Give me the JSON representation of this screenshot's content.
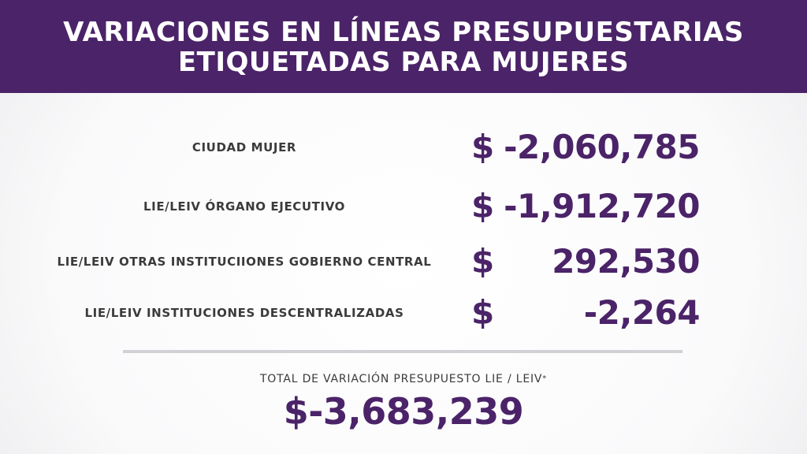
{
  "header": {
    "title_line1": "VARIACIONES EN LÍNEAS PRESUPUESTARIAS",
    "title_line2": "ETIQUETADAS PARA MUJERES"
  },
  "rows": [
    {
      "label": "CIUDAD MUJER",
      "currency": "$",
      "amount": "-2,060,785"
    },
    {
      "label": "LIE/LEIV ÓRGANO EJECUTIVO",
      "currency": "$",
      "amount": "-1,912,720"
    },
    {
      "label": "LIE/LEIV OTRAS INSTITUCIIONES GOBIERNO CENTRAL",
      "currency": "$",
      "amount": "292,530"
    },
    {
      "label": "LIE/LEIV INSTITUCIONES DESCENTRALIZADAS",
      "currency": "$",
      "amount": "-2,264"
    }
  ],
  "total": {
    "label": "TOTAL DE VARIACIÓN PRESUPUESTO LIE / LEIV",
    "note_mark": "*",
    "value": "$-3,683,239"
  },
  "colors": {
    "brand_purple": "#4b2368",
    "label_gray": "#3b3b3b",
    "divider": "#d2d2d6"
  }
}
